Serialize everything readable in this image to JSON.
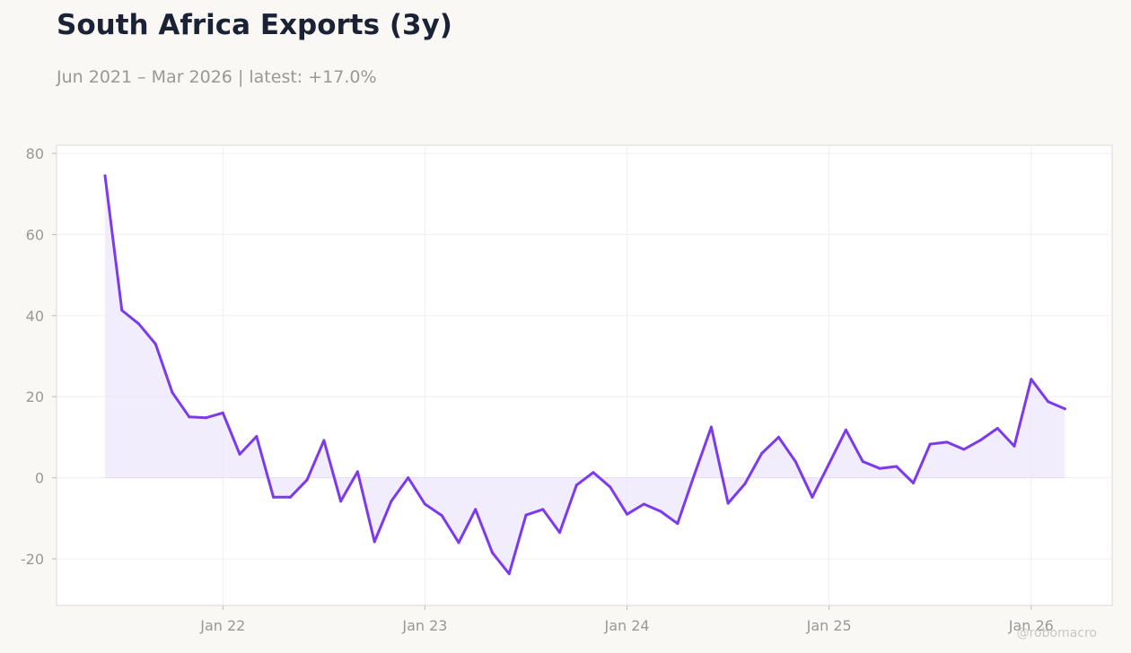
{
  "header": {
    "title": "South Africa Exports (3y)",
    "subtitle": "Jun 2021 – Mar 2026 | latest: +17.0%"
  },
  "watermark": "@robomacro",
  "colors": {
    "line": "#7c3aed",
    "fill": "#ede7fb",
    "background": "#f9f8f5",
    "plot_background": "#ffffff",
    "grid": "#efefef"
  },
  "chart_data": {
    "type": "area",
    "title": "South Africa Exports (3y)",
    "xlabel": "",
    "ylabel": "",
    "ylim": [
      -31.5,
      82
    ],
    "yticks": [
      80,
      60,
      40,
      20,
      0,
      -20
    ],
    "xticks": [
      "Jan 22",
      "Jan 23",
      "Jan 24",
      "Jan 25",
      "Jan 26"
    ],
    "grid": true,
    "legend": "none",
    "x": [
      "2021-06",
      "2021-07",
      "2021-08",
      "2021-09",
      "2021-10",
      "2021-11",
      "2021-12",
      "2022-01",
      "2022-02",
      "2022-03",
      "2022-04",
      "2022-05",
      "2022-06",
      "2022-07",
      "2022-08",
      "2022-09",
      "2022-10",
      "2022-11",
      "2022-12",
      "2023-01",
      "2023-02",
      "2023-03",
      "2023-04",
      "2023-05",
      "2023-06",
      "2023-07",
      "2023-08",
      "2023-09",
      "2023-10",
      "2023-11",
      "2023-12",
      "2024-01",
      "2024-02",
      "2024-03",
      "2024-04",
      "2024-05",
      "2024-06",
      "2024-07",
      "2024-08",
      "2024-09",
      "2024-10",
      "2024-11",
      "2024-12",
      "2025-01",
      "2025-02",
      "2025-03",
      "2025-04",
      "2025-05",
      "2025-06",
      "2025-07",
      "2025-08",
      "2025-09",
      "2025-10",
      "2025-11",
      "2025-12",
      "2026-01",
      "2026-02",
      "2026-03"
    ],
    "values": [
      74.5,
      41.3,
      38.0,
      33.0,
      21.0,
      15.0,
      14.8,
      16.0,
      5.8,
      10.2,
      -4.8,
      -4.8,
      -0.5,
      9.2,
      -5.8,
      1.5,
      -15.8,
      -5.8,
      0.0,
      -6.5,
      -9.3,
      -16.0,
      -7.8,
      -18.5,
      -23.7,
      -9.2,
      -7.8,
      -13.5,
      -1.8,
      1.3,
      -2.3,
      -9.0,
      -6.5,
      -8.3,
      -11.3,
      0.8,
      12.5,
      -6.3,
      -1.5,
      6.0,
      10.0,
      4.0,
      -4.8,
      3.5,
      11.8,
      4.0,
      2.3,
      2.8,
      -1.3,
      8.3,
      8.8,
      7.0,
      9.3,
      12.2,
      7.8,
      24.3,
      18.8,
      17.0
    ]
  }
}
